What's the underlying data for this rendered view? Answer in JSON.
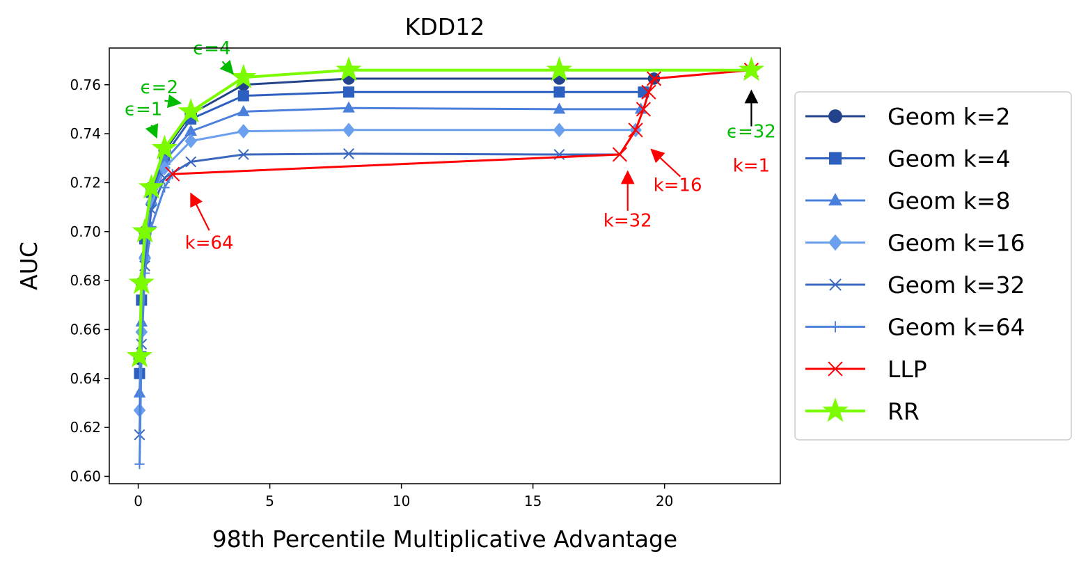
{
  "chart_data": {
    "type": "line",
    "title": "KDD12",
    "xlabel": "98th Percentile Multiplicative Advantage",
    "ylabel": "AUC",
    "xlim": [
      -1.1,
      24.4
    ],
    "ylim": [
      0.597,
      0.775
    ],
    "xticks": [
      0,
      5,
      10,
      15,
      20
    ],
    "yticks": [
      0.6,
      0.62,
      0.64,
      0.66,
      0.68,
      0.7,
      0.72,
      0.74,
      0.76
    ],
    "xtick_labels": [
      "0",
      "5",
      "10",
      "15",
      "20"
    ],
    "ytick_labels": [
      "0.60",
      "0.62",
      "0.64",
      "0.66",
      "0.68",
      "0.70",
      "0.72",
      "0.74",
      "0.76"
    ],
    "grid": false,
    "legend_position": "right-outside",
    "series": [
      {
        "name": "Geom k=2",
        "color": "#23448c",
        "marker": "circle",
        "x": [
          0.05,
          0.125,
          0.25,
          0.5,
          1,
          2,
          4,
          8,
          16,
          19.6
        ],
        "y": [
          0.648,
          0.679,
          0.7,
          0.718,
          0.733,
          0.748,
          0.76,
          0.7625,
          0.7625,
          0.7625
        ]
      },
      {
        "name": "Geom k=4",
        "color": "#2c5fbf",
        "marker": "square",
        "x": [
          0.05,
          0.125,
          0.25,
          0.5,
          1,
          2,
          4,
          8,
          16,
          19.2
        ],
        "y": [
          0.642,
          0.672,
          0.697,
          0.716,
          0.731,
          0.746,
          0.7555,
          0.757,
          0.757,
          0.757
        ]
      },
      {
        "name": "Geom k=8",
        "color": "#4a80dc",
        "marker": "triangle",
        "x": [
          0.05,
          0.125,
          0.25,
          0.5,
          1,
          2,
          4,
          8,
          16,
          19.1
        ],
        "y": [
          0.634,
          0.663,
          0.691,
          0.713,
          0.729,
          0.741,
          0.749,
          0.7505,
          0.75,
          0.75
        ]
      },
      {
        "name": "Geom k=16",
        "color": "#6aa0ee",
        "marker": "diamond",
        "x": [
          0.05,
          0.125,
          0.25,
          0.5,
          1,
          2,
          4,
          8,
          16,
          18.9
        ],
        "y": [
          0.627,
          0.659,
          0.689,
          0.711,
          0.726,
          0.737,
          0.741,
          0.7415,
          0.7415,
          0.7415
        ]
      },
      {
        "name": "Geom k=32",
        "color": "#3a68c0",
        "marker": "x",
        "x": [
          0.05,
          0.125,
          0.25,
          0.5,
          1,
          2,
          4,
          8,
          16,
          18.3
        ],
        "y": [
          0.617,
          0.654,
          0.686,
          0.709,
          0.722,
          0.7285,
          0.7315,
          0.7318,
          0.7315,
          0.7315
        ]
      },
      {
        "name": "Geom k=64",
        "color": "#5085dc",
        "marker": "plus",
        "x": [
          0.05,
          0.125,
          0.25,
          0.5,
          1,
          1.3
        ],
        "y": [
          0.605,
          0.651,
          0.683,
          0.702,
          0.718,
          0.7235
        ]
      },
      {
        "name": "LLP",
        "color": "#ff0000",
        "marker": "x",
        "x": [
          1.3,
          18.3,
          18.9,
          19.2,
          19.4,
          19.6,
          23.3
        ],
        "y": [
          0.7235,
          0.7315,
          0.7415,
          0.75,
          0.757,
          0.7625,
          0.766
        ]
      },
      {
        "name": "RR",
        "color": "#7cfc00",
        "marker": "star",
        "x": [
          0.05,
          0.125,
          0.25,
          0.5,
          1,
          2,
          4,
          8,
          16,
          23.3
        ],
        "y": [
          0.649,
          0.679,
          0.7,
          0.718,
          0.734,
          0.749,
          0.763,
          0.766,
          0.766,
          0.766
        ]
      }
    ],
    "annotations": [
      {
        "text": "ϵ=1",
        "color": "#00bb00",
        "text_x": 0.2,
        "text_y": 0.7475,
        "arrow_from": [
          0.5,
          0.7435
        ],
        "arrow_to": [
          0.7,
          0.7385
        ]
      },
      {
        "text": "ϵ=2",
        "color": "#00bb00",
        "text_x": 0.8,
        "text_y": 0.7565,
        "arrow_from": [
          1.0,
          0.7535
        ],
        "arrow_to": [
          1.6,
          0.7525
        ]
      },
      {
        "text": "ϵ=4",
        "color": "#00bb00",
        "text_x": 2.8,
        "text_y": 0.7725,
        "arrow_from": [
          3.2,
          0.7695
        ],
        "arrow_to": [
          3.6,
          0.7645
        ]
      },
      {
        "text": "ϵ=32",
        "color": "#00bb00",
        "text_x": 23.3,
        "text_y": 0.7385,
        "arrow_from": [
          23.3,
          0.743
        ],
        "arrow_to": [
          23.3,
          0.7575
        ]
      },
      {
        "text": "k=1",
        "color": "#ff0000",
        "text_x": 23.3,
        "text_y": 0.7245,
        "arrow_from": null,
        "arrow_to": null
      },
      {
        "text": "k=16",
        "color": "#ff0000",
        "text_x": 20.5,
        "text_y": 0.7165,
        "arrow_from": [
          20.6,
          0.7225
        ],
        "arrow_to": [
          19.5,
          0.7335
        ]
      },
      {
        "text": "k=32",
        "color": "#ff0000",
        "text_x": 18.6,
        "text_y": 0.702,
        "arrow_from": [
          18.6,
          0.7085
        ],
        "arrow_to": [
          18.6,
          0.7245
        ]
      },
      {
        "text": "k=64",
        "color": "#ff0000",
        "text_x": 2.7,
        "text_y": 0.693,
        "arrow_from": [
          2.7,
          0.7005
        ],
        "arrow_to": [
          2.0,
          0.7155
        ]
      }
    ]
  }
}
